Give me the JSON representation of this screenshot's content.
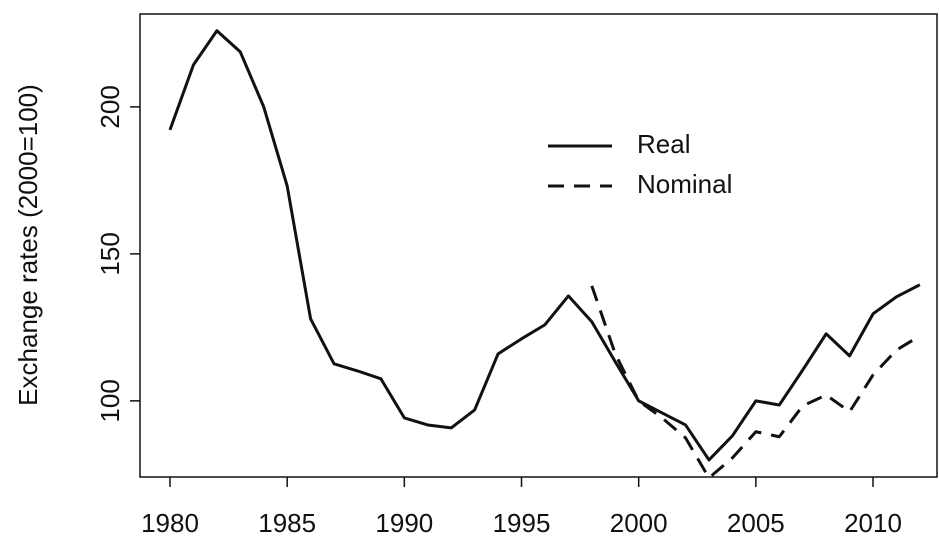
{
  "chart_data": {
    "type": "line",
    "y_label": "Exchange rates (2000=100)",
    "x": [
      1980,
      1981,
      1982,
      1983,
      1984,
      1985,
      1986,
      1987,
      1988,
      1989,
      1990,
      1991,
      1992,
      1993,
      1994,
      1995,
      1996,
      1997,
      1998,
      1999,
      2000,
      2001,
      2002,
      2003,
      2004,
      2005,
      2006,
      2007,
      2008,
      2009,
      2010,
      2011,
      2012
    ],
    "series": [
      {
        "name": "Real",
        "color": "#111111",
        "dash": "solid",
        "values": [
          192.2,
          214.3,
          225.9,
          218.7,
          200,
          173.1,
          127.9,
          112.6,
          110.2,
          107.5,
          94.2,
          91.8,
          90.8,
          96.9,
          116,
          121.1,
          125.9,
          135.7,
          126.9,
          113.3,
          100,
          95.9,
          91.8,
          79.9,
          88.1,
          100,
          98.6,
          110.5,
          122.8,
          115.3,
          129.6,
          135.4,
          139.5
        ]
      },
      {
        "name": "Nominal",
        "color": "#111111",
        "dash": "dashed",
        "values": [
          null,
          null,
          null,
          null,
          null,
          null,
          null,
          null,
          null,
          null,
          null,
          null,
          null,
          null,
          null,
          null,
          null,
          null,
          139.1,
          116,
          100,
          94.2,
          87.4,
          73.8,
          80.6,
          89.5,
          87.8,
          98.3,
          102,
          96.3,
          108.8,
          117.3,
          122.1
        ]
      }
    ],
    "xlim": [
      1978.72,
      2012.73
    ],
    "xticks": [
      1980,
      1985,
      1990,
      1995,
      2000,
      2005,
      2010
    ],
    "ylim": [
      74.1,
      231.6
    ],
    "yticks": [
      100,
      150,
      200
    ]
  }
}
